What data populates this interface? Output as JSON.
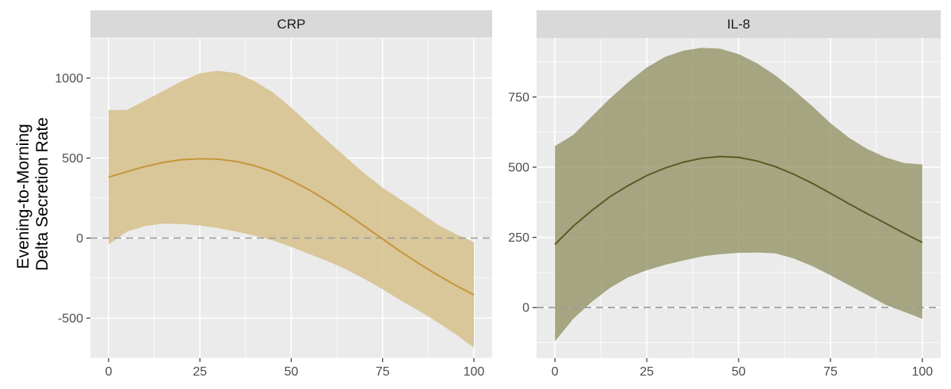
{
  "ylabel_lines": [
    "Evening-to-Morning",
    "Delta Secretion Rate"
  ],
  "chart_data": [
    {
      "type": "line",
      "title": "CRP",
      "xlabel": "",
      "ylabel": "Evening-to-Morning Delta Secretion Rate",
      "xlim": [
        -5,
        105
      ],
      "ylim": [
        -750,
        1250
      ],
      "x_ticks": [
        0,
        25,
        50,
        75,
        100
      ],
      "y_ticks": [
        -500,
        0,
        500,
        1000
      ],
      "y_tick_labels": [
        "-500",
        "0",
        "500",
        "1000"
      ],
      "reference_line_y": 0,
      "grid": true,
      "line_color": "#c4973a",
      "band_color": "#d6c08b",
      "band_opacity": 0.85,
      "series": [
        {
          "x": [
            0,
            5,
            10,
            15,
            20,
            25,
            30,
            35,
            40,
            45,
            50,
            55,
            60,
            65,
            70,
            75,
            80,
            85,
            90,
            95,
            100
          ],
          "y": [
            380,
            415,
            447,
            473,
            490,
            495,
            493,
            478,
            452,
            413,
            360,
            300,
            230,
            155,
            75,
            -5,
            -85,
            -160,
            -230,
            -295,
            -355
          ],
          "lower": [
            -40,
            40,
            75,
            90,
            88,
            78,
            62,
            40,
            15,
            -15,
            -55,
            -100,
            -145,
            -195,
            -255,
            -320,
            -390,
            -455,
            -525,
            -600,
            -685
          ],
          "upper": [
            800,
            800,
            860,
            920,
            980,
            1030,
            1045,
            1030,
            980,
            910,
            815,
            710,
            605,
            505,
            405,
            315,
            240,
            165,
            85,
            25,
            -25
          ]
        }
      ]
    },
    {
      "type": "line",
      "title": "IL-8",
      "xlabel": "",
      "ylabel": "",
      "xlim": [
        -5,
        105
      ],
      "ylim": [
        -180,
        960
      ],
      "x_ticks": [
        0,
        25,
        50,
        75,
        100
      ],
      "y_ticks": [
        0,
        250,
        500,
        750
      ],
      "y_tick_labels": [
        "0",
        "250",
        "500",
        "750"
      ],
      "reference_line_y": 0,
      "grid": true,
      "line_color": "#5e5a24",
      "band_color": "#8f8d5e",
      "band_opacity": 0.75,
      "series": [
        {
          "x": [
            0,
            5,
            10,
            15,
            20,
            25,
            30,
            35,
            40,
            45,
            50,
            55,
            60,
            65,
            70,
            75,
            80,
            85,
            90,
            95,
            100
          ],
          "y": [
            225,
            290,
            345,
            395,
            435,
            470,
            497,
            518,
            532,
            538,
            535,
            522,
            502,
            475,
            443,
            407,
            370,
            334,
            300,
            265,
            232
          ],
          "lower": [
            -120,
            -40,
            20,
            70,
            108,
            133,
            152,
            168,
            182,
            190,
            195,
            196,
            193,
            175,
            148,
            115,
            80,
            45,
            10,
            -15,
            -40
          ],
          "upper": [
            575,
            615,
            680,
            745,
            803,
            855,
            893,
            915,
            925,
            922,
            903,
            870,
            827,
            775,
            718,
            657,
            605,
            565,
            535,
            515,
            510
          ]
        }
      ]
    }
  ]
}
